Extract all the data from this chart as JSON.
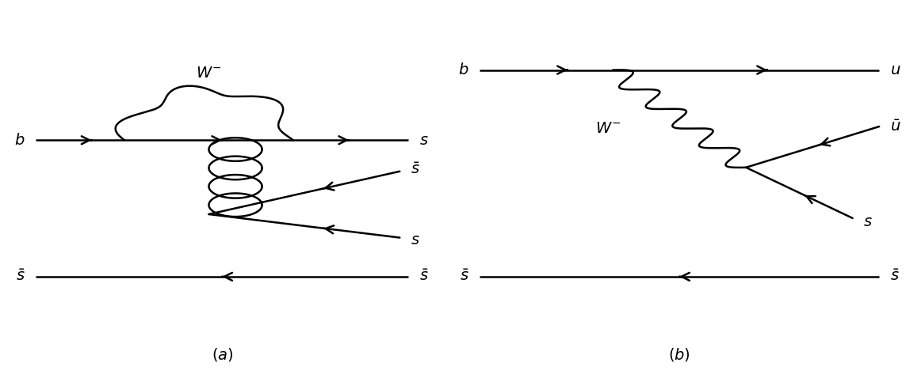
{
  "figure_width": 11.43,
  "figure_height": 4.68,
  "dpi": 100,
  "background_color": "#ffffff",
  "line_color": "black",
  "line_width": 1.8,
  "font_size": 13,
  "caption_font_size": 13
}
